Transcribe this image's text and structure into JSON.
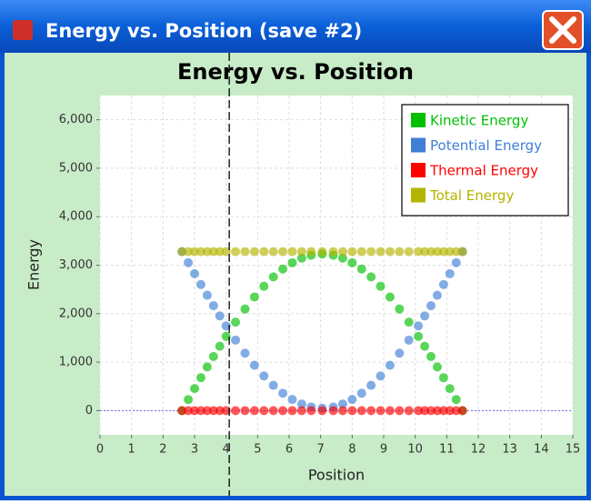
{
  "window": {
    "title": "Energy vs. Position (save #2)"
  },
  "chart_data": {
    "type": "scatter",
    "title": "Energy vs. Position",
    "x_label": "Position",
    "y_label": "Energy",
    "x": [
      2.6,
      2.8,
      3.0,
      3.2,
      3.4,
      3.6,
      3.8,
      4.0,
      4.3,
      4.6,
      4.9,
      5.2,
      5.5,
      5.8,
      6.1,
      6.4,
      6.7,
      7.05,
      7.4,
      7.7,
      8.0,
      8.3,
      8.6,
      8.9,
      9.2,
      9.5,
      9.8,
      10.1,
      10.3,
      10.5,
      10.7,
      10.9,
      11.1,
      11.3,
      11.5
    ],
    "series": [
      {
        "name": "Kinetic Energy",
        "color": "#00c000",
        "values": [
          0,
          228,
          455,
          679,
          900,
          1116,
          1327,
          1532,
          1825,
          2096,
          2344,
          2565,
          2758,
          2921,
          3050,
          3145,
          3205,
          3230,
          3205,
          3145,
          3050,
          2921,
          2758,
          2565,
          2344,
          2096,
          1825,
          1532,
          1327,
          1116,
          900,
          679,
          455,
          228,
          0
        ]
      },
      {
        "name": "Potential Energy",
        "color": "#3f7fd6",
        "values": [
          3280,
          3052,
          2825,
          2601,
          2380,
          2164,
          1953,
          1748,
          1455,
          1184,
          936,
          715,
          522,
          359,
          230,
          135,
          75,
          50,
          75,
          135,
          230,
          359,
          522,
          715,
          936,
          1184,
          1455,
          1748,
          1953,
          2164,
          2380,
          2601,
          2825,
          3052,
          3280
        ]
      },
      {
        "name": "Thermal Energy",
        "color": "#ff0000",
        "values": [
          0,
          0,
          0,
          0,
          0,
          0,
          0,
          0,
          0,
          0,
          0,
          0,
          0,
          0,
          0,
          0,
          0,
          0,
          0,
          0,
          0,
          0,
          0,
          0,
          0,
          0,
          0,
          0,
          0,
          0,
          0,
          0,
          0,
          0,
          0
        ]
      },
      {
        "name": "Total Energy",
        "color": "#b4b400",
        "values": [
          3280,
          3280,
          3280,
          3280,
          3280,
          3280,
          3280,
          3280,
          3280,
          3280,
          3280,
          3280,
          3280,
          3280,
          3280,
          3280,
          3280,
          3280,
          3280,
          3280,
          3280,
          3280,
          3280,
          3280,
          3280,
          3280,
          3280,
          3280,
          3280,
          3280,
          3280,
          3280,
          3280,
          3280,
          3280
        ]
      }
    ],
    "xlim": [
      0,
      15
    ],
    "xticks": [
      0,
      1,
      2,
      3,
      4,
      5,
      6,
      7,
      8,
      9,
      10,
      11,
      12,
      13,
      14,
      15
    ],
    "ylim": [
      -500,
      6500
    ],
    "yticks": [
      0,
      {
        "value": 1000,
        "label": "1,000"
      },
      {
        "value": 2000,
        "label": "2,000"
      },
      {
        "value": 3000,
        "label": "3,000"
      },
      {
        "value": 4000,
        "label": "4,000"
      },
      {
        "value": 5000,
        "label": "5,000"
      },
      {
        "value": 6000,
        "label": "6,000"
      }
    ],
    "grid": true,
    "legend": "upper-right",
    "vertical_line_x": 4.1
  }
}
